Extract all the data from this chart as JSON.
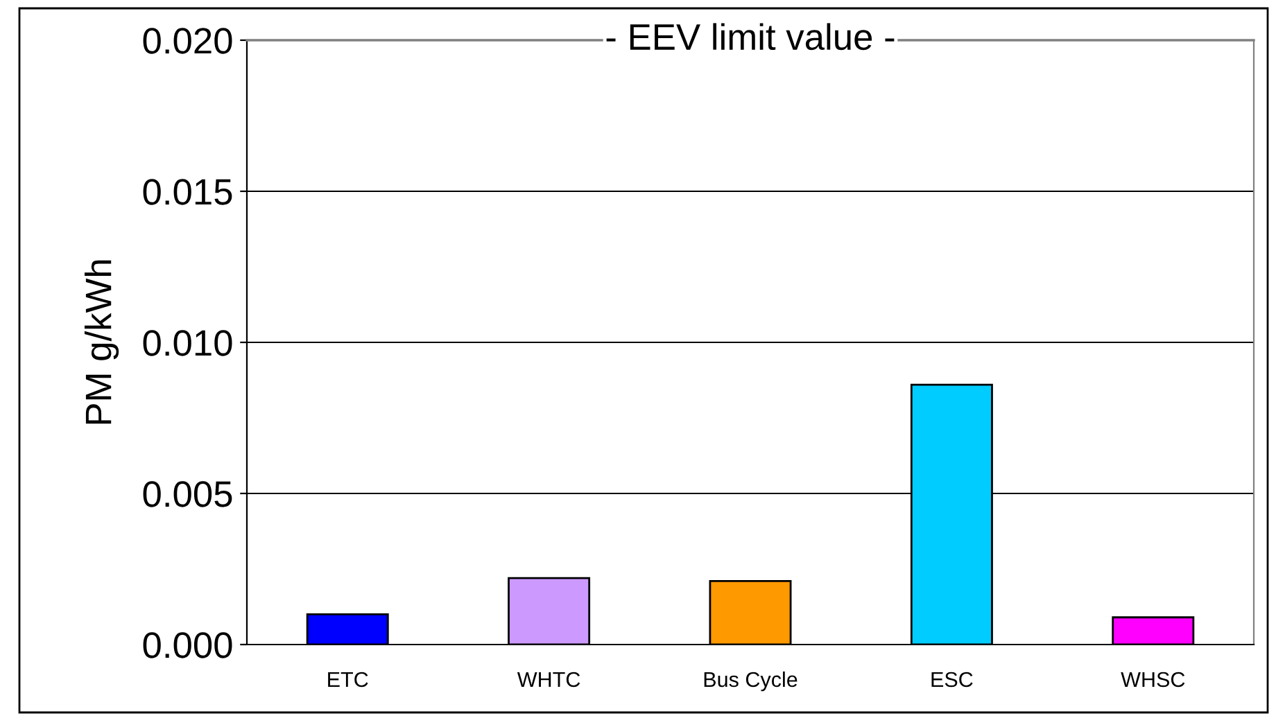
{
  "chart_data": {
    "type": "bar",
    "ylabel": "PM g/kWh",
    "categories": [
      "ETC",
      "WHTC",
      "Bus Cycle",
      "ESC",
      "WHSC"
    ],
    "values": [
      0.001,
      0.0022,
      0.0021,
      0.0086,
      0.0009
    ],
    "colors": [
      "#0000ff",
      "#cc99ff",
      "#ff9900",
      "#00ccff",
      "#ff00ff"
    ],
    "ylim": [
      0,
      0.02
    ],
    "yticks": [
      {
        "value": 0,
        "label": "0.000"
      },
      {
        "value": 0.005,
        "label": "0.005"
      },
      {
        "value": 0.01,
        "label": "0.010"
      },
      {
        "value": 0.015,
        "label": "0.015"
      },
      {
        "value": 0.02,
        "label": "0.020"
      }
    ],
    "grid": "y",
    "ref_lines": [
      {
        "axis": "y",
        "value": 0.02,
        "label": "- EEV limit value -",
        "color": "#808080"
      }
    ]
  }
}
